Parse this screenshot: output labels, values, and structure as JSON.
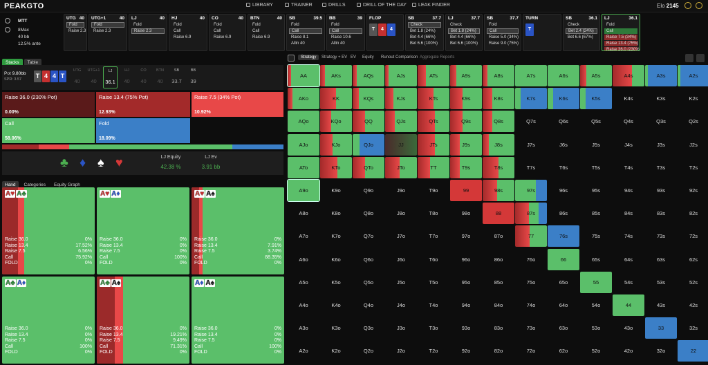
{
  "app": {
    "logo": "PEAKGTO",
    "nav": [
      "LIBRARY",
      "TRAINER",
      "DRILLS",
      "DRILL OF THE DAY",
      "LEAK FINDER"
    ],
    "elo_label": "Elo",
    "elo_value": "2145"
  },
  "game": {
    "type": "MTT",
    "format": "8Max",
    "stack": "40 bb",
    "ante": "12.5% ante"
  },
  "seats": [
    {
      "pos": "UTG",
      "stack": "40",
      "actions": [
        "Fold",
        "Raise 2.3"
      ],
      "sel": 0
    },
    {
      "pos": "UTG+1",
      "stack": "40",
      "actions": [
        "Fold",
        "Raise 2.3"
      ],
      "sel": 0
    },
    {
      "pos": "LJ",
      "stack": "40",
      "actions": [
        "Fold",
        "Raise 2.3"
      ],
      "sel": 1
    },
    {
      "pos": "HJ",
      "stack": "40",
      "actions": [
        "Fold",
        "Call",
        "Raise 6.9"
      ],
      "sel": -1
    },
    {
      "pos": "CO",
      "stack": "40",
      "actions": [
        "Fold",
        "Call",
        "Raise 6.9"
      ],
      "sel": -1
    },
    {
      "pos": "BTN",
      "stack": "40",
      "actions": [
        "Fold",
        "Call",
        "Raise 6.9"
      ],
      "sel": -1
    },
    {
      "pos": "SB",
      "stack": "39.5",
      "actions": [
        "Fold",
        "Call",
        "Raise 8.1",
        "Allin 40"
      ],
      "sel": 1
    },
    {
      "pos": "BB",
      "stack": "39",
      "actions": [
        "Fold",
        "Call",
        "Raise 10.6",
        "Allin 40"
      ],
      "sel": 1
    },
    {
      "pos": "FLOP",
      "stack": "",
      "actions": [],
      "sel": -1
    },
    {
      "pos": "SB",
      "stack": "37.7",
      "actions": [
        "Check",
        "Bet 1.8 (24%)",
        "Bet 4.4 (66%)",
        "Bet 6.6 (100%)"
      ],
      "sel": 0
    },
    {
      "pos": "LJ",
      "stack": "37.7",
      "actions": [
        "Check",
        "Bet 1.8 (24%)",
        "Bet 4.4 (66%)",
        "Bet 6.6 (100%)"
      ],
      "sel": 1
    },
    {
      "pos": "SB",
      "stack": "37.7",
      "actions": [
        "Fold",
        "Call",
        "Raise 5.0 (34%)",
        "Raise 9.0 (75%)"
      ],
      "sel": 1
    },
    {
      "pos": "TURN",
      "stack": "",
      "actions": [],
      "sel": -1
    },
    {
      "pos": "SB",
      "stack": "36.1",
      "actions": [
        "Check",
        "Bet 2.4 (24%)",
        "Bet 6.6 (67%)"
      ],
      "sel": 1
    },
    {
      "pos": "LJ",
      "stack": "36.1",
      "actions": [
        "Fold",
        "Call",
        "Raise 7.5 (34%)",
        "Raise 13.4 (75%)",
        "Raise 36.0 (230%)"
      ],
      "sel": -1
    }
  ],
  "flop_cards": [
    "T",
    "4",
    "4"
  ],
  "turn_card": "T",
  "left": {
    "tabs": [
      "Stacks",
      "Table"
    ],
    "pot_label": "Pot",
    "pot_value": "9.80bb",
    "spr_label": "SPR: 3.57",
    "board": [
      "T",
      "4",
      "4",
      "T"
    ],
    "mini_seats": [
      {
        "p": "UTG",
        "v": "40"
      },
      {
        "p": "UTG+1",
        "v": "40"
      },
      {
        "p": "LJ",
        "v": "36.1"
      },
      {
        "p": "HJ",
        "v": "40"
      },
      {
        "p": "CO",
        "v": "40"
      },
      {
        "p": "BTN",
        "v": "40"
      },
      {
        "p": "SB",
        "v": "33.7"
      },
      {
        "p": "BB",
        "v": "39"
      }
    ],
    "actions": [
      {
        "label": "Raise 36.0 (230% Pot)",
        "pct": "0.00%"
      },
      {
        "label": "Raise 13.4 (75% Pot)",
        "pct": "12.93%"
      },
      {
        "label": "Raise 7.5 (34% Pot)",
        "pct": "10.92%"
      },
      {
        "label": "Call",
        "pct": "58.06%"
      },
      {
        "label": "Fold",
        "pct": "18.09%"
      }
    ],
    "freq": [
      12.93,
      10.92,
      58.06,
      18.09
    ],
    "equity_label": "LJ Equity",
    "equity_value": "42.38 %",
    "ev_label": "LJ Ev",
    "ev_value": "3.91 bb",
    "hand_tabs": [
      "Hand",
      "Categories",
      "Equity Graph"
    ],
    "combos": [
      {
        "c1": "A",
        "s1": "♥",
        "k1": "r",
        "c2": "A",
        "s2": "♣",
        "k2": "g",
        "strip": [
          [
            30,
            "#8b2a2a"
          ],
          [
            0,
            "#d43838"
          ]
        ],
        "rows": [
          [
            "Raise 36.0",
            "0%"
          ],
          [
            "Raise 13.4",
            "17.52%"
          ],
          [
            "Raise 7.5",
            "6.56%"
          ],
          [
            "Call",
            "75.92%"
          ],
          [
            "FOLD",
            "0%"
          ]
        ],
        "sr": 17.52,
        "sr2": 6.56
      },
      {
        "c1": "A",
        "s1": "♥",
        "k1": "r",
        "c2": "A",
        "s2": "♦",
        "k2": "b",
        "strip": [],
        "rows": [
          [
            "Raise 36.0",
            "0%"
          ],
          [
            "Raise 13.4",
            "0%"
          ],
          [
            "Raise 7.5",
            "0%"
          ],
          [
            "Call",
            "100%"
          ],
          [
            "FOLD",
            "0%"
          ]
        ],
        "sr": 0,
        "sr2": 0
      },
      {
        "c1": "A",
        "s1": "♥",
        "k1": "r",
        "c2": "A",
        "s2": "♠",
        "k2": "k",
        "strip": [],
        "rows": [
          [
            "Raise 36.0",
            "0%"
          ],
          [
            "Raise 13.4",
            "7.91%"
          ],
          [
            "Raise 7.5",
            "3.74%"
          ],
          [
            "Call",
            "88.35%"
          ],
          [
            "FOLD",
            "0%"
          ]
        ],
        "sr": 7.91,
        "sr2": 3.74
      },
      {
        "c1": "A",
        "s1": "♣",
        "k1": "g",
        "c2": "A",
        "s2": "♦",
        "k2": "b",
        "strip": [],
        "rows": [
          [
            "Raise 36.0",
            "0%"
          ],
          [
            "Raise 13.4",
            "0%"
          ],
          [
            "Raise 7.5",
            "0%"
          ],
          [
            "Call",
            "100%"
          ],
          [
            "FOLD",
            "0%"
          ]
        ],
        "sr": 0,
        "sr2": 0
      },
      {
        "c1": "A",
        "s1": "♣",
        "k1": "g",
        "c2": "A",
        "s2": "♠",
        "k2": "k",
        "strip": [],
        "rows": [
          [
            "Raise 36.0",
            "0%"
          ],
          [
            "Raise 13.4",
            "19.21%"
          ],
          [
            "Raise 7.5",
            "9.49%"
          ],
          [
            "Call",
            "71.31%"
          ],
          [
            "FOLD",
            "0%"
          ]
        ],
        "sr": 19.21,
        "sr2": 9.49
      },
      {
        "c1": "A",
        "s1": "♦",
        "k1": "b",
        "c2": "A",
        "s2": "♠",
        "k2": "k",
        "strip": [],
        "rows": [
          [
            "Raise 36.0",
            "0%"
          ],
          [
            "Raise 13.4",
            "0%"
          ],
          [
            "Raise 7.5",
            "0%"
          ],
          [
            "Call",
            "100%"
          ],
          [
            "FOLD",
            "0%"
          ]
        ],
        "sr": 0,
        "sr2": 0
      }
    ]
  },
  "right": {
    "tabs": [
      "Strategy",
      "Strategy + EV",
      "EV",
      "Equity",
      "Runout Comparison",
      "Aggregate Reports"
    ],
    "grid": [
      [
        "AA",
        "AKs",
        "AQs",
        "AJs",
        "ATs",
        "A9s",
        "A8s",
        "A7s",
        "A6s",
        "A5s",
        "A4s",
        "A3s",
        "A2s"
      ],
      [
        "AKo",
        "KK",
        "KQs",
        "KJs",
        "KTs",
        "K9s",
        "K8s",
        "K7s",
        "K6s",
        "K5s",
        "K4s",
        "K3s",
        "K2s"
      ],
      [
        "AQo",
        "KQo",
        "QQ",
        "QJs",
        "QTs",
        "Q9s",
        "Q8s",
        "Q7s",
        "Q6s",
        "Q5s",
        "Q4s",
        "Q3s",
        "Q2s"
      ],
      [
        "AJo",
        "KJo",
        "QJo",
        "JJ",
        "JTs",
        "J9s",
        "J8s",
        "J7s",
        "J6s",
        "J5s",
        "J4s",
        "J3s",
        "J2s"
      ],
      [
        "ATo",
        "KTo",
        "QTo",
        "JTo",
        "TT",
        "T9s",
        "T8s",
        "T7s",
        "T6s",
        "T5s",
        "T4s",
        "T3s",
        "T2s"
      ],
      [
        "A9o",
        "K9o",
        "Q9o",
        "J9o",
        "T9o",
        "99",
        "98s",
        "97s",
        "96s",
        "95s",
        "94s",
        "93s",
        "92s"
      ],
      [
        "A8o",
        "K8o",
        "Q8o",
        "J8o",
        "T8o",
        "98o",
        "88",
        "87s",
        "86s",
        "85s",
        "84s",
        "83s",
        "82s"
      ],
      [
        "A7o",
        "K7o",
        "Q7o",
        "J7o",
        "T7o",
        "97o",
        "87o",
        "77",
        "76s",
        "75s",
        "74s",
        "73s",
        "72s"
      ],
      [
        "A6o",
        "K6o",
        "Q6o",
        "J6o",
        "T6o",
        "96o",
        "86o",
        "76o",
        "66",
        "65s",
        "64s",
        "63s",
        "62s"
      ],
      [
        "A5o",
        "K5o",
        "Q5o",
        "J5o",
        "T5o",
        "95o",
        "85o",
        "75o",
        "65o",
        "55",
        "54s",
        "53s",
        "52s"
      ],
      [
        "A4o",
        "K4o",
        "Q4o",
        "J4o",
        "T4o",
        "94o",
        "84o",
        "74o",
        "64o",
        "54o",
        "44",
        "43s",
        "42s"
      ],
      [
        "A3o",
        "K3o",
        "Q3o",
        "J3o",
        "T3o",
        "93o",
        "83o",
        "73o",
        "63o",
        "53o",
        "43o",
        "33",
        "32s"
      ],
      [
        "A2o",
        "K2o",
        "Q2o",
        "J2o",
        "T2o",
        "92o",
        "82o",
        "72o",
        "62o",
        "52o",
        "42o",
        "32o",
        "22"
      ]
    ]
  }
}
